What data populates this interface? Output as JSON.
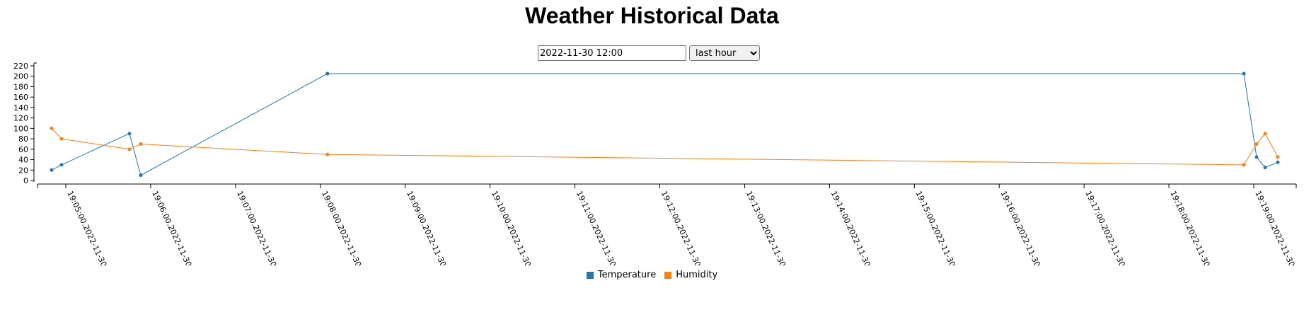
{
  "page": {
    "title": "Weather Historical Data"
  },
  "controls": {
    "date_value": "2022-11-30 12:00",
    "range_selected": "last hour",
    "range_options": [
      "last hour"
    ]
  },
  "chart_data": {
    "type": "line",
    "title": "",
    "xlabel": "",
    "ylabel": "",
    "ylim": [
      0,
      220
    ],
    "yticks": [
      0,
      20,
      40,
      60,
      80,
      100,
      120,
      140,
      160,
      180,
      200,
      220
    ],
    "xlim": [
      "19:04:40",
      "19:19:30"
    ],
    "xticks": [
      "19:05:00.2022-11-30",
      "19:06:00.2022-11-30",
      "19:07:00.2022-11-30",
      "19:08:00.2022-11-30",
      "19:09:00.2022-11-30",
      "19:10:00.2022-11-30",
      "19:11:00.2022-11-30",
      "19:12:00.2022-11-30",
      "19:13:00.2022-11-30",
      "19:14:00.2022-11-30",
      "19:15:00.2022-11-30",
      "19:16:00.2022-11-30",
      "19:17:00.2022-11-30",
      "19:18:00.2022-11-30",
      "19:19:00.2022-11-30"
    ],
    "grid": false,
    "legend": "bottom-center",
    "series": [
      {
        "name": "Temperature",
        "color": "#1f77b4",
        "points": [
          {
            "x": "19:04:50",
            "y": 20
          },
          {
            "x": "19:04:57",
            "y": 30
          },
          {
            "x": "19:05:45",
            "y": 90
          },
          {
            "x": "19:05:53",
            "y": 10
          },
          {
            "x": "19:08:05",
            "y": 205
          },
          {
            "x": "19:18:53",
            "y": 205
          },
          {
            "x": "19:19:02",
            "y": 45
          },
          {
            "x": "19:19:08",
            "y": 25
          },
          {
            "x": "19:19:17",
            "y": 35
          }
        ]
      },
      {
        "name": "Humidity",
        "color": "#ff7f0e",
        "points": [
          {
            "x": "19:04:50",
            "y": 100
          },
          {
            "x": "19:04:57",
            "y": 80
          },
          {
            "x": "19:05:45",
            "y": 60
          },
          {
            "x": "19:05:53",
            "y": 70
          },
          {
            "x": "19:08:05",
            "y": 50
          },
          {
            "x": "19:18:53",
            "y": 30
          },
          {
            "x": "19:19:02",
            "y": 70
          },
          {
            "x": "19:19:08",
            "y": 90
          },
          {
            "x": "19:19:17",
            "y": 45
          }
        ]
      }
    ]
  }
}
